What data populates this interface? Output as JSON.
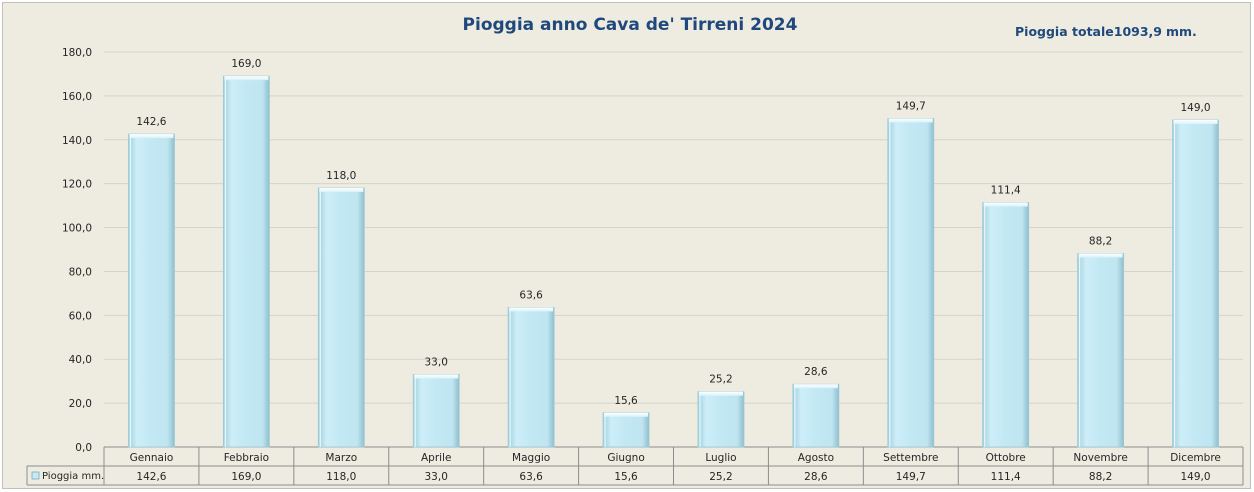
{
  "title": "Pioggia anno Cava de' Tirreni 2024",
  "total_label": "Pioggia totale",
  "total_value": "1093,9",
  "total_unit": "mm.",
  "chart_data": {
    "type": "bar",
    "title": "Pioggia anno Cava de' Tirreni 2024",
    "categories": [
      "Gennaio",
      "Febbraio",
      "Marzo",
      "Aprile",
      "Maggio",
      "Giugno",
      "Luglio",
      "Agosto",
      "Settembre",
      "Ottobre",
      "Novembre",
      "Dicembre"
    ],
    "series": [
      {
        "name": "Pioggia mm.",
        "values": [
          142.6,
          169.0,
          118.0,
          33.0,
          63.6,
          15.6,
          25.2,
          28.6,
          149.7,
          111.4,
          88.2,
          149.0
        ]
      }
    ],
    "value_labels": [
      "142,6",
      "169,0",
      "118,0",
      "33,0",
      "63,6",
      "15,6",
      "25,2",
      "28,6",
      "149,7",
      "111,4",
      "88,2",
      "149,0"
    ],
    "ylim": [
      0,
      180
    ],
    "yticks": [
      "0,0",
      "20,0",
      "40,0",
      "60,0",
      "80,0",
      "100,0",
      "120,0",
      "140,0",
      "160,0",
      "180,0"
    ],
    "grid": true,
    "data_table": true,
    "bar_color": "#c6e9f4",
    "bar_edge_color": "#9cc8d6",
    "title_color": "#1f497d",
    "background_color": "#eeece1"
  }
}
